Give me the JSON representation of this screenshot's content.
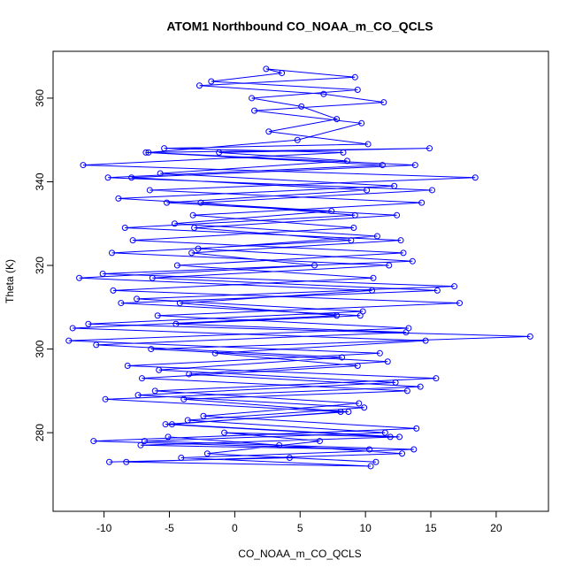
{
  "chart_data": {
    "type": "line",
    "title": "ATOM1 Northbound CO_NOAA_m_CO_QCLS",
    "x_label": "CO_NOAA_m_CO_QCLS",
    "y_label": "Theta (K)",
    "xlim": [
      -13.9,
      24.0
    ],
    "ylim": [
      261.2,
      371.2
    ],
    "xticks": [
      -10,
      -5,
      0,
      5,
      10,
      15,
      20
    ],
    "yticks": [
      280,
      300,
      320,
      340,
      360
    ],
    "markers": true,
    "x": [
      -9.6,
      4.2,
      10.8,
      -2.1,
      6.5,
      -0.8,
      11.9,
      -5.3,
      8.7,
      -3.9,
      13.2,
      -7.1,
      9.4,
      -1.5,
      14.6,
      -12.4,
      7.8,
      -4.2,
      10.5,
      -11.9,
      6.1,
      -3.3,
      12.7,
      -8.4,
      9.2,
      -2.6,
      15.1,
      -9.7,
      11.3,
      -6.8,
      14.9,
      -1.2,
      8.6,
      -5.7,
      12.2,
      -8.9,
      7.4,
      -4.6,
      10.9,
      -2.8,
      13.6,
      -10.1,
      16.8,
      -7.5,
      9.8,
      -11.2,
      22.6,
      -6.4,
      11.7,
      -3.5,
      14.2,
      -9.9,
      8.1,
      -4.8,
      12.6,
      -7.2,
      10.3,
      -10.8,
      13.9,
      -2.4,
      9.5,
      -6.1,
      15.4,
      -8.2,
      11.1,
      -12.7,
      13.3,
      -5.9,
      17.2,
      -9.3,
      10.6,
      -4.4,
      12.9,
      -7.8,
      9.1,
      -3.2,
      14.3,
      -6.5,
      18.4,
      -11.6,
      8.3,
      -5.4,
      10.2,
      2.6,
      7.8,
      5.1,
      1.3,
      9.4,
      -1.8,
      3.6,
      2.4,
      9.2,
      -2.7,
      6.8,
      11.4,
      1.5,
      9.7,
      4.8,
      -6.6,
      13.8,
      -7.9,
      10.1,
      -5.2,
      12.4,
      -3.1,
      8.9,
      -9.4,
      11.8,
      -6.3,
      15.5,
      -8.7,
      9.6,
      -4.5,
      13.1,
      -10.6,
      8.2,
      -5.8,
      12.3,
      -7.4,
      9.9,
      -3.6,
      11.5,
      -6.9,
      13.7,
      -4.1,
      10.4,
      -8.3,
      12.8,
      3.4,
      -5.1
    ],
    "series": [
      {
        "color": "#0000ff",
        "values": [
          273,
          274,
          273,
          275,
          278,
          280,
          279,
          282,
          285,
          288,
          290,
          293,
          296,
          299,
          302,
          305,
          308,
          311,
          314,
          317,
          320,
          323,
          326,
          329,
          332,
          335,
          338,
          341,
          344,
          347,
          348,
          347,
          345,
          342,
          339,
          336,
          333,
          330,
          327,
          324,
          321,
          318,
          315,
          312,
          309,
          306,
          303,
          300,
          297,
          294,
          291,
          288,
          285,
          282,
          279,
          277,
          276,
          278,
          281,
          284,
          287,
          290,
          293,
          296,
          299,
          302,
          305,
          308,
          311,
          314,
          317,
          320,
          323,
          326,
          329,
          332,
          335,
          338,
          341,
          344,
          347,
          348,
          349,
          352,
          355,
          358,
          360,
          362,
          364,
          366,
          367,
          365,
          363,
          361,
          359,
          357,
          354,
          350,
          347,
          344,
          341,
          338,
          335,
          332,
          329,
          326,
          323,
          320,
          317,
          314,
          311,
          308,
          306,
          304,
          301,
          298,
          295,
          292,
          289,
          286,
          283,
          280,
          278,
          276,
          274,
          272,
          273,
          275,
          277,
          279
        ]
      }
    ]
  }
}
